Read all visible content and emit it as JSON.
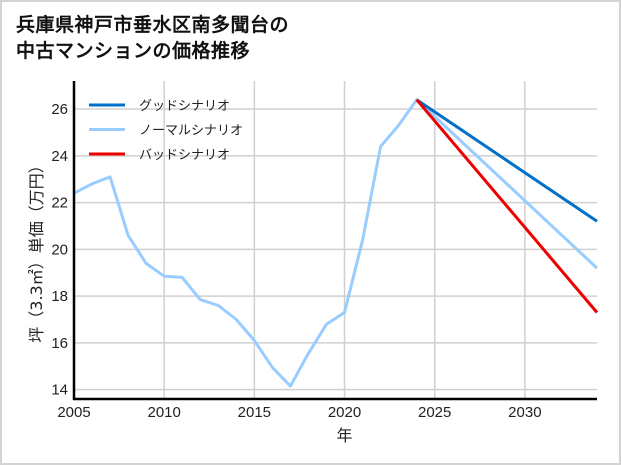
{
  "title": {
    "line1": "兵庫県神戸市垂水区南多聞台の",
    "line2": "中古マンションの価格推移"
  },
  "chart_data": {
    "type": "line",
    "title": "兵庫県神戸市垂水区南多聞台の中古マンションの価格推移",
    "xlabel": "年",
    "ylabel": "坪（3.3㎡）単価（万円）",
    "xlim": [
      2005,
      2034
    ],
    "ylim": [
      13.6,
      27.2
    ],
    "xticks": [
      2005,
      2010,
      2015,
      2020,
      2025,
      2030
    ],
    "yticks": [
      14,
      16,
      18,
      20,
      22,
      24,
      26
    ],
    "grid": true,
    "legend_position": "upper left",
    "series": [
      {
        "name": "グッドシナリオ",
        "color": "#0070c8",
        "x": [
          2024,
          2034
        ],
        "values": [
          26.4,
          21.2
        ]
      },
      {
        "name": "ノーマルシナリオ",
        "color": "#99ccff",
        "x": [
          2005,
          2006,
          2007,
          2008,
          2009,
          2010,
          2011,
          2012,
          2013,
          2014,
          2015,
          2016,
          2017,
          2018,
          2019,
          2020,
          2021,
          2022,
          2023,
          2024,
          2034
        ],
        "values": [
          22.4,
          22.8,
          23.1,
          20.6,
          19.4,
          18.85,
          18.8,
          17.85,
          17.6,
          17.0,
          16.1,
          14.95,
          14.15,
          15.55,
          16.8,
          17.3,
          20.4,
          24.4,
          25.3,
          26.4,
          19.2
        ]
      },
      {
        "name": "バッドシナリオ",
        "color": "#ee0000",
        "x": [
          2024,
          2034
        ],
        "values": [
          26.4,
          17.3
        ]
      }
    ]
  }
}
